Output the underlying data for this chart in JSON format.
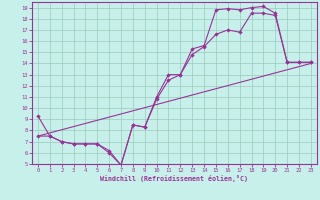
{
  "xlabel": "Windchill (Refroidissement éolien,°C)",
  "bg_color": "#c8f0ea",
  "grid_color": "#99ccbb",
  "line_color": "#993399",
  "spine_color": "#993399",
  "xlim": [
    -0.5,
    23.5
  ],
  "ylim": [
    5,
    19.5
  ],
  "xticks": [
    0,
    1,
    2,
    3,
    4,
    5,
    6,
    7,
    8,
    9,
    10,
    11,
    12,
    13,
    14,
    15,
    16,
    17,
    18,
    19,
    20,
    21,
    22,
    23
  ],
  "yticks": [
    5,
    6,
    7,
    8,
    9,
    10,
    11,
    12,
    13,
    14,
    15,
    16,
    17,
    18,
    19
  ],
  "line1_x": [
    0,
    1,
    2,
    3,
    4,
    5,
    6,
    7,
    8,
    9,
    10,
    11,
    12,
    13,
    14,
    15,
    16,
    17,
    18,
    19,
    20,
    21,
    22,
    23
  ],
  "line1_y": [
    9.3,
    7.5,
    7.0,
    6.8,
    6.8,
    6.8,
    6.0,
    4.9,
    8.5,
    8.3,
    11.0,
    13.0,
    13.0,
    15.3,
    15.6,
    18.8,
    18.9,
    18.8,
    19.0,
    19.1,
    18.5,
    14.1,
    14.1,
    14.1
  ],
  "line2_x": [
    0,
    1,
    2,
    3,
    4,
    5,
    6,
    7,
    8,
    9,
    10,
    11,
    12,
    13,
    14,
    15,
    16,
    17,
    18,
    19,
    20,
    21,
    22,
    23
  ],
  "line2_y": [
    7.5,
    7.5,
    7.0,
    6.8,
    6.8,
    6.8,
    6.2,
    4.9,
    8.5,
    8.3,
    10.8,
    12.5,
    13.0,
    14.8,
    15.5,
    16.6,
    17.0,
    16.8,
    18.5,
    18.5,
    18.3,
    14.1,
    14.1,
    14.1
  ],
  "line3_x": [
    0,
    23
  ],
  "line3_y": [
    7.5,
    14.0
  ]
}
